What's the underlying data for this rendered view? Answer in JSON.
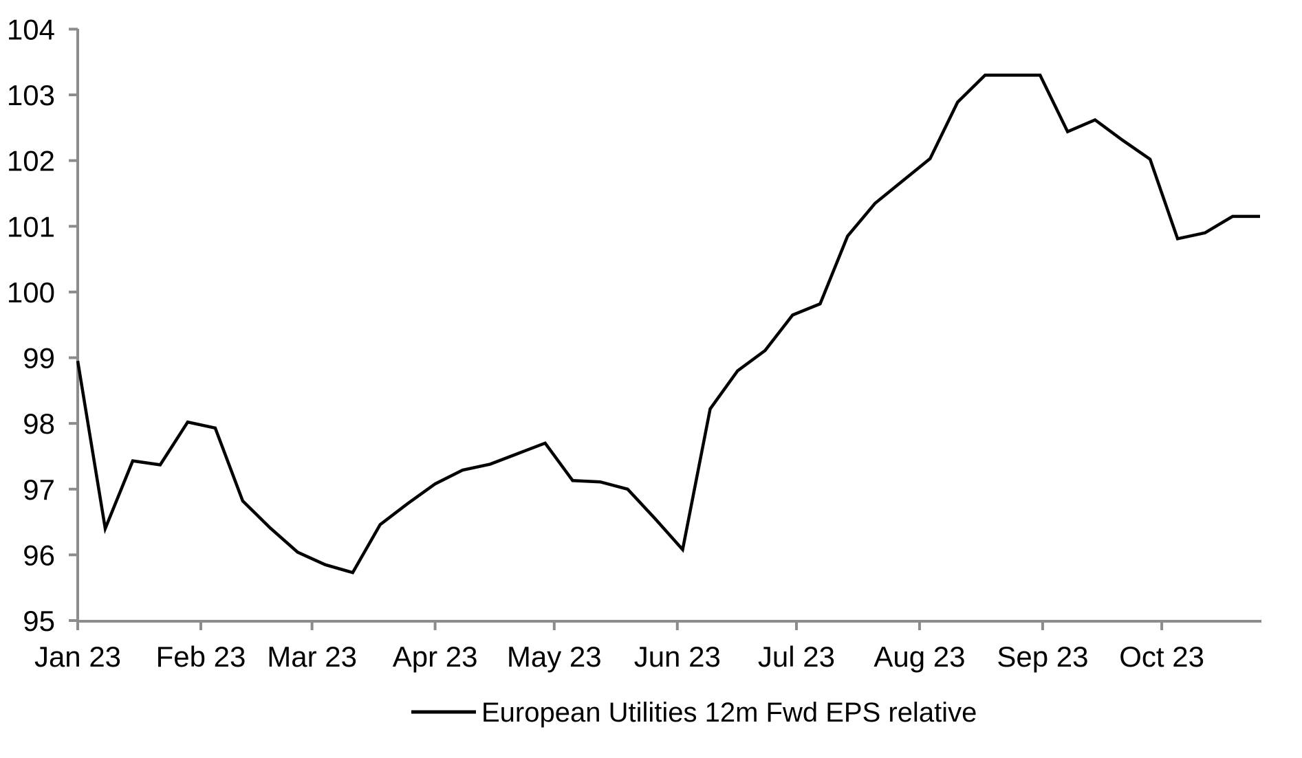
{
  "figure": {
    "background_color": "#ffffff",
    "axis_color": "#8c8c8c",
    "text_color": "#000000"
  },
  "chart_data": {
    "type": "line",
    "title": "",
    "xlabel": "",
    "ylabel": "",
    "grid": false,
    "ylim": [
      95,
      104
    ],
    "y_axis": {
      "ticks": [
        95,
        96,
        97,
        98,
        99,
        100,
        101,
        102,
        103,
        104
      ]
    },
    "x_axis": {
      "ticks": [
        {
          "label": "Jan 23",
          "day": 0
        },
        {
          "label": "Feb 23",
          "day": 31
        },
        {
          "label": "Mar 23",
          "day": 59
        },
        {
          "label": "Apr 23",
          "day": 90
        },
        {
          "label": "May 23",
          "day": 120
        },
        {
          "label": "Jun 23",
          "day": 151
        },
        {
          "label": "Jul 23",
          "day": 181
        },
        {
          "label": "Aug 23",
          "day": 212
        },
        {
          "label": "Sep 23",
          "day": 243
        },
        {
          "label": "Oct 23",
          "day": 273
        }
      ]
    },
    "legend": {
      "position": "bottom-center"
    },
    "series": [
      {
        "name": "European Utilities 12m Fwd EPS relative",
        "color": "#000000",
        "x_dates": [
          "2022-12-30",
          "2023-01-06",
          "2023-01-13",
          "2023-01-20",
          "2023-01-27",
          "2023-02-03",
          "2023-02-10",
          "2023-02-17",
          "2023-02-24",
          "2023-03-03",
          "2023-03-10",
          "2023-03-17",
          "2023-03-24",
          "2023-03-31",
          "2023-04-07",
          "2023-04-14",
          "2023-04-21",
          "2023-04-28",
          "2023-05-05",
          "2023-05-12",
          "2023-05-19",
          "2023-05-26",
          "2023-06-02",
          "2023-06-09",
          "2023-06-16",
          "2023-06-23",
          "2023-06-30",
          "2023-07-07",
          "2023-07-14",
          "2023-07-21",
          "2023-07-28",
          "2023-08-04",
          "2023-08-11",
          "2023-08-18",
          "2023-08-25",
          "2023-09-01",
          "2023-09-08",
          "2023-09-15",
          "2023-09-22",
          "2023-09-29",
          "2023-10-06",
          "2023-10-13",
          "2023-10-20",
          "2023-10-27"
        ],
        "values": [
          98.95,
          96.4,
          97.43,
          97.37,
          98.02,
          97.93,
          96.82,
          96.41,
          96.04,
          95.85,
          95.73,
          96.46,
          96.78,
          97.08,
          97.29,
          97.38,
          97.54,
          97.7,
          97.13,
          97.11,
          97.0,
          96.55,
          96.08,
          98.22,
          98.8,
          99.11,
          99.65,
          99.82,
          100.85,
          101.35,
          101.69,
          102.03,
          102.89,
          103.3,
          103.3,
          103.3,
          102.44,
          102.62,
          102.31,
          102.02,
          100.81,
          100.9,
          101.15,
          101.15
        ]
      }
    ]
  }
}
